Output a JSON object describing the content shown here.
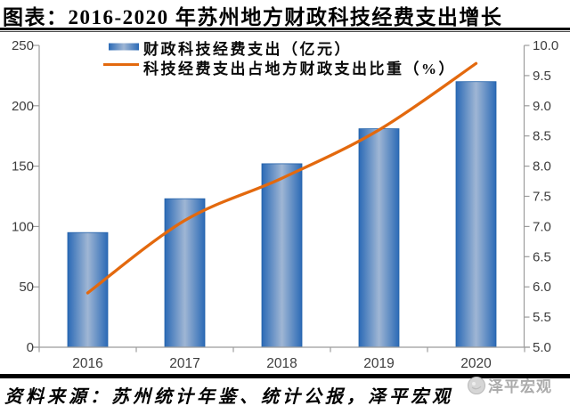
{
  "page_title": "图表：2016-2020 年苏州地方财政科技经费支出增长",
  "source_note": "资料来源：苏州统计年鉴、统计公报，泽平宏观",
  "watermark": {
    "label": "泽平宏观"
  },
  "colors": {
    "bar_edge": "#2b6ab6",
    "bar_mid": "#9fb6d4",
    "bar_border": "#2160a9",
    "line": "#e3690e",
    "axis": "#9c9c9c",
    "tick_label": "#3d3d3d",
    "watermark": "#ababab"
  },
  "chart_data": {
    "type": "combo-bar-line",
    "categories": [
      "2016",
      "2017",
      "2018",
      "2019",
      "2020"
    ],
    "series": [
      {
        "name": "财政科技经费支出（亿元）",
        "type": "bar",
        "axis": "left",
        "values": [
          95,
          123,
          152,
          181,
          220
        ]
      },
      {
        "name": "科技经费支出占地方财政支出比重（%）",
        "type": "line",
        "axis": "right",
        "values": [
          5.9,
          7.1,
          7.8,
          8.6,
          9.7
        ]
      }
    ],
    "left_axis": {
      "min": 0,
      "max": 250,
      "step": 50,
      "tick_labels": [
        "0",
        "50",
        "100",
        "150",
        "200",
        "250"
      ]
    },
    "right_axis": {
      "min": 5.0,
      "max": 10.0,
      "step": 0.5,
      "tick_labels": [
        "5.0",
        "5.5",
        "6.0",
        "6.5",
        "7.0",
        "7.5",
        "8.0",
        "8.5",
        "9.0",
        "9.5",
        "10.0"
      ]
    },
    "grid": false,
    "legend_position": "top-center"
  }
}
